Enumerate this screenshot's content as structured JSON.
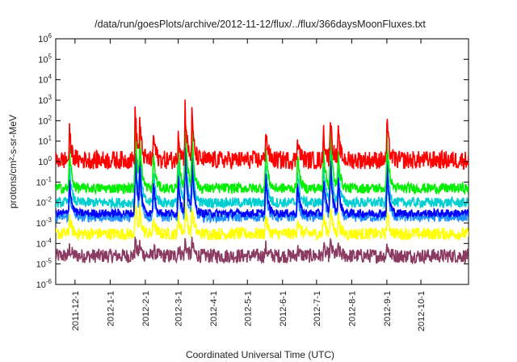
{
  "chart_data": {
    "type": "line",
    "title": "/data/run/goesPlots/archive/2012-11-12/flux/../flux/366daysMoonFluxes.txt",
    "xlabel": "Coordinated Universal Time (UTC)",
    "ylabel": "protons/cm²-s-sr-MeV",
    "yscale": "log",
    "ylim": [
      1e-06,
      1000000.0
    ],
    "xlim": [
      "2011-11-14",
      "2012-11-12"
    ],
    "grid": false,
    "legend": "none",
    "x_ticks": [
      "2011-12-1",
      "2012-1-1",
      "2012-2-1",
      "2012-3-1",
      "2012-4-1",
      "2012-5-1",
      "2012-6-1",
      "2012-7-1",
      "2012-8-1",
      "2012-9-1",
      "2012-10-1"
    ],
    "y_ticks": [
      {
        "base": "10",
        "exp": "-6"
      },
      {
        "base": "10",
        "exp": "-5"
      },
      {
        "base": "10",
        "exp": "-4"
      },
      {
        "base": "10",
        "exp": "-3"
      },
      {
        "base": "10",
        "exp": "-2"
      },
      {
        "base": "10",
        "exp": "-1"
      },
      {
        "base": "10",
        "exp": "0"
      },
      {
        "base": "10",
        "exp": "1"
      },
      {
        "base": "10",
        "exp": "2"
      },
      {
        "base": "10",
        "exp": "3"
      },
      {
        "base": "10",
        "exp": "4"
      },
      {
        "base": "10",
        "exp": "5"
      },
      {
        "base": "10",
        "exp": "6"
      }
    ],
    "series": [
      {
        "color": "#8B3A62",
        "baseline": 2.5e-05,
        "spread_decades": 0.35,
        "peak_gain": 0.4
      },
      {
        "color": "#FFFF00",
        "baseline": 0.0003,
        "spread_decades": 0.3,
        "peak_gain": 0.9
      },
      {
        "color": "#1E90FF",
        "baseline": 0.002,
        "spread_decades": 0.25,
        "peak_gain": 1.6
      },
      {
        "color": "#00CED1",
        "baseline": 0.01,
        "spread_decades": 0.25,
        "peak_gain": 1.8
      },
      {
        "color": "#0000FF",
        "baseline": 0.003,
        "spread_decades": 0.2,
        "peak_gain": 1.8
      },
      {
        "color": "#00EE00",
        "baseline": 0.05,
        "spread_decades": 0.25,
        "peak_gain": 2.0
      },
      {
        "color": "#FF0000",
        "baseline": 1.2,
        "spread_decades": 0.45,
        "peak_gain": 1.4
      }
    ],
    "events": [
      {
        "date": "2011-11-26",
        "peak": 150
      },
      {
        "date": "2012-01-23",
        "peak": 5000
      },
      {
        "date": "2012-01-27",
        "peak": 300
      },
      {
        "date": "2012-02-08",
        "peak": 100
      },
      {
        "date": "2012-03-01",
        "peak": 200
      },
      {
        "date": "2012-03-07",
        "peak": 8000
      },
      {
        "date": "2012-03-13",
        "peak": 2000
      },
      {
        "date": "2012-05-17",
        "peak": 300
      },
      {
        "date": "2012-06-14",
        "peak": 100
      },
      {
        "date": "2012-07-07",
        "peak": 200
      },
      {
        "date": "2012-07-13",
        "peak": 3000
      },
      {
        "date": "2012-07-20",
        "peak": 100
      },
      {
        "date": "2012-09-01",
        "peak": 800
      }
    ]
  }
}
